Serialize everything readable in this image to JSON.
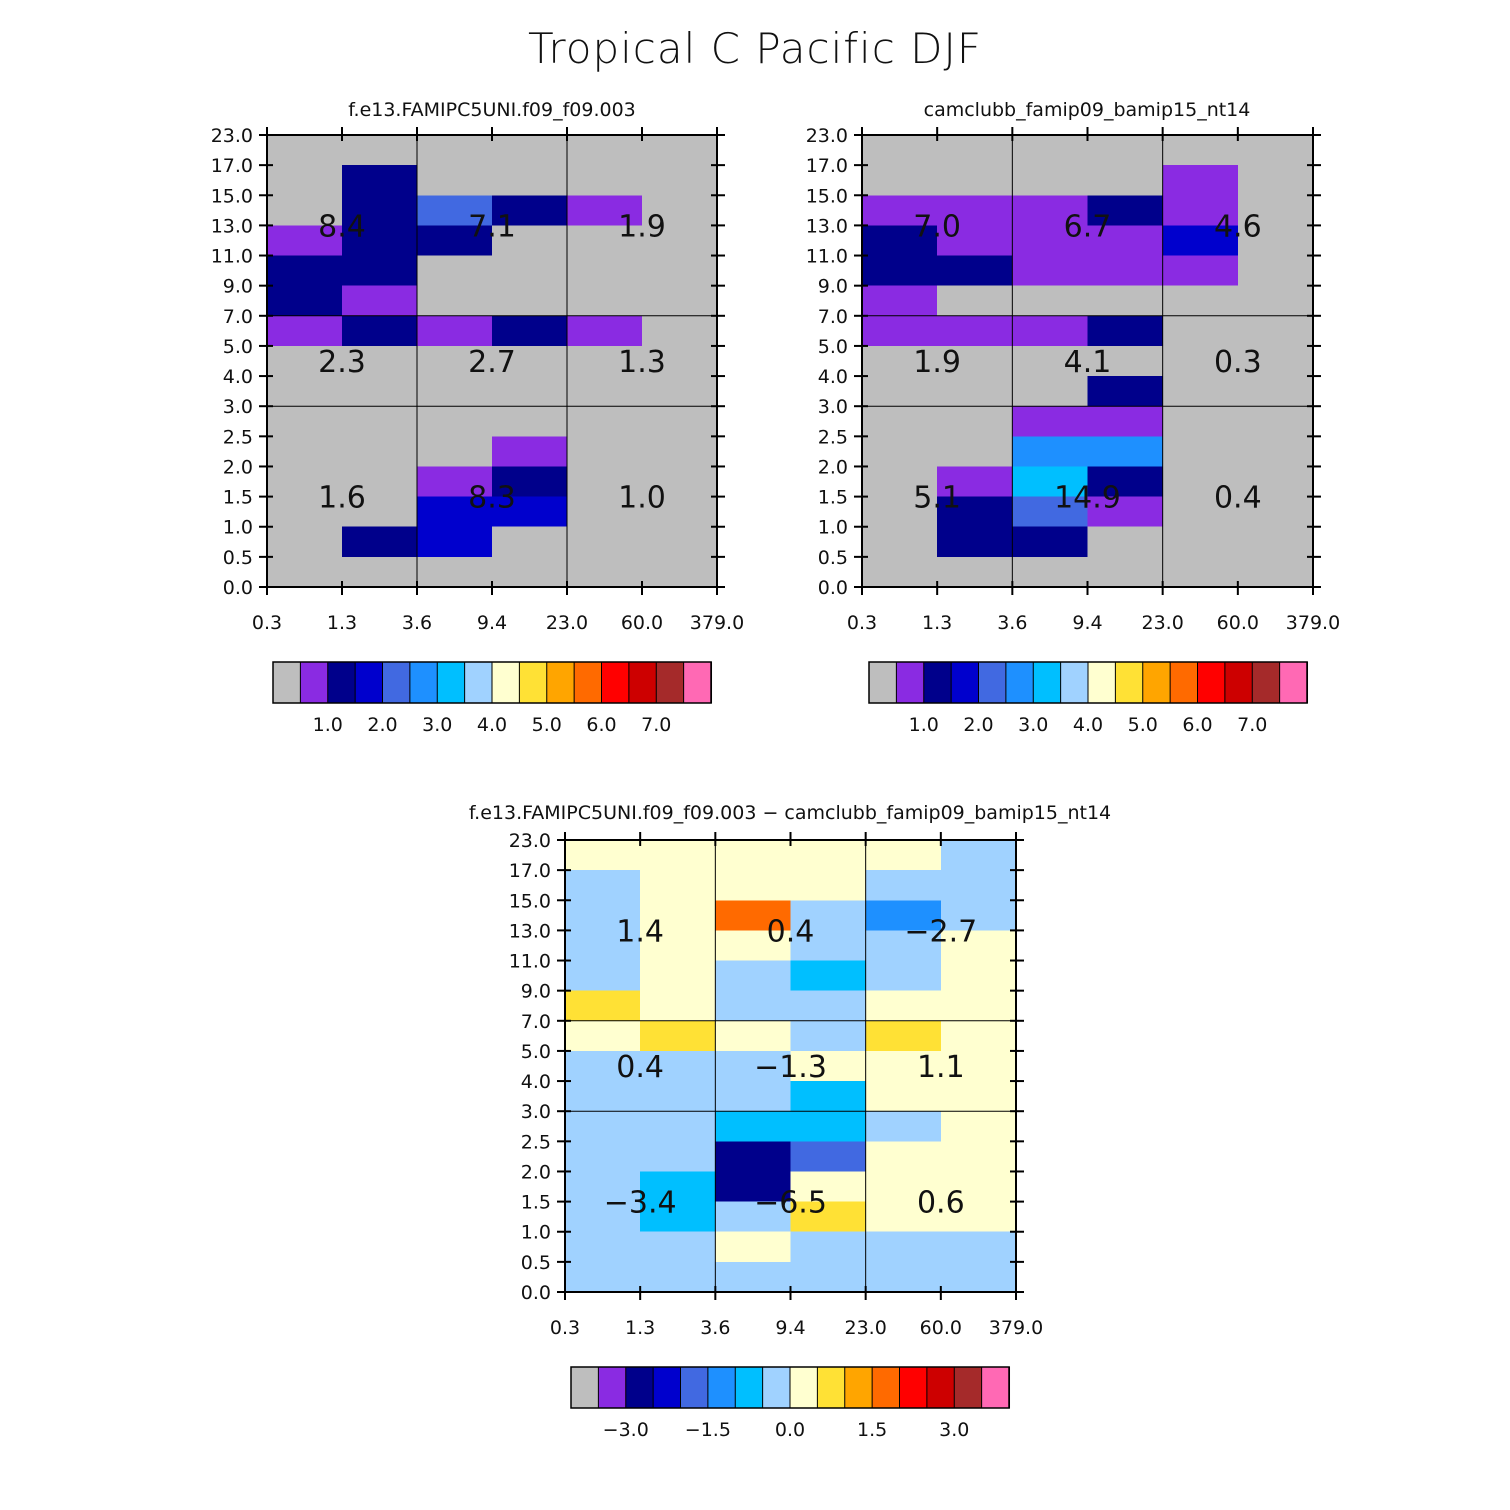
{
  "title": "Tropical C Pacific DJF",
  "cloud_color_key": [
    "#bebebe",
    "#8a2be2",
    "#00008b",
    "#0000cd",
    "#4169e1",
    "#1e90ff",
    "#00bfff",
    "#a0d2ff",
    "#ffffd0",
    "#ffe135",
    "#ffa500",
    "#ff6a00",
    "#ff0000",
    "#cd0000",
    "#a52a2a",
    "#ff69b4"
  ],
  "chart_data": [
    {
      "type": "heatmap",
      "title": "f.e13.FAMIPC5UNI.f09_f09.003",
      "x_ticks": [
        "0.3",
        "1.3",
        "3.6",
        "9.4",
        "23.0",
        "60.0",
        "379.0"
      ],
      "y_ticks": [
        "0.0",
        "0.5",
        "1.0",
        "1.5",
        "2.0",
        "2.5",
        "3.0",
        "4.0",
        "5.0",
        "7.0",
        "9.0",
        "11.0",
        "13.0",
        "15.0",
        "17.0",
        "23.0"
      ],
      "grid_rows_top_to_bottom": [
        [
          0,
          0,
          0,
          0,
          0,
          0
        ],
        [
          0,
          2,
          0,
          0,
          0,
          0
        ],
        [
          0,
          2,
          4,
          2,
          1,
          0
        ],
        [
          1,
          2,
          2,
          0,
          0,
          0
        ],
        [
          2,
          2,
          0,
          0,
          0,
          0
        ],
        [
          2,
          1,
          0,
          0,
          0,
          0
        ],
        [
          1,
          2,
          1,
          2,
          1,
          0
        ],
        [
          0,
          0,
          0,
          0,
          0,
          0
        ],
        [
          0,
          0,
          0,
          0,
          0,
          0
        ],
        [
          0,
          0,
          0,
          0,
          0,
          0
        ],
        [
          0,
          0,
          0,
          1,
          0,
          0
        ],
        [
          0,
          0,
          1,
          2,
          0,
          0
        ],
        [
          0,
          0,
          3,
          3,
          0,
          0
        ],
        [
          0,
          2,
          3,
          0,
          0,
          0
        ],
        [
          0,
          0,
          0,
          0,
          0,
          0
        ]
      ],
      "box_labels": [
        {
          "value": "8.4",
          "col": 0,
          "row": 0
        },
        {
          "value": "7.1",
          "col": 1,
          "row": 0
        },
        {
          "value": "1.9",
          "col": 2,
          "row": 0
        },
        {
          "value": "2.3",
          "col": 0,
          "row": 1
        },
        {
          "value": "2.7",
          "col": 1,
          "row": 1
        },
        {
          "value": "1.3",
          "col": 2,
          "row": 1
        },
        {
          "value": "1.6",
          "col": 0,
          "row": 2
        },
        {
          "value": "8.3",
          "col": 1,
          "row": 2
        },
        {
          "value": "1.0",
          "col": 2,
          "row": 2
        }
      ],
      "colorbar_labels": [
        "1.0",
        "2.0",
        "3.0",
        "4.0",
        "5.0",
        "6.0",
        "7.0"
      ]
    },
    {
      "type": "heatmap",
      "title": "camclubb_famip09_bamip15_nt14",
      "x_ticks": [
        "0.3",
        "1.3",
        "3.6",
        "9.4",
        "23.0",
        "60.0",
        "379.0"
      ],
      "y_ticks": [
        "0.0",
        "0.5",
        "1.0",
        "1.5",
        "2.0",
        "2.5",
        "3.0",
        "4.0",
        "5.0",
        "7.0",
        "9.0",
        "11.0",
        "13.0",
        "15.0",
        "17.0",
        "23.0"
      ],
      "grid_rows_top_to_bottom": [
        [
          0,
          0,
          0,
          0,
          0,
          0
        ],
        [
          0,
          0,
          0,
          0,
          1,
          0
        ],
        [
          1,
          1,
          1,
          2,
          1,
          0
        ],
        [
          2,
          1,
          1,
          1,
          3,
          0
        ],
        [
          2,
          2,
          1,
          1,
          1,
          0
        ],
        [
          1,
          0,
          0,
          0,
          0,
          0
        ],
        [
          1,
          1,
          1,
          2,
          0,
          0
        ],
        [
          0,
          0,
          0,
          0,
          0,
          0
        ],
        [
          0,
          0,
          0,
          2,
          0,
          0
        ],
        [
          0,
          0,
          1,
          1,
          0,
          0
        ],
        [
          0,
          0,
          5,
          5,
          0,
          0
        ],
        [
          0,
          1,
          6,
          2,
          0,
          0
        ],
        [
          0,
          2,
          4,
          1,
          0,
          0
        ],
        [
          0,
          2,
          2,
          0,
          0,
          0
        ],
        [
          0,
          0,
          0,
          0,
          0,
          0
        ]
      ],
      "box_labels": [
        {
          "value": "7.0",
          "col": 0,
          "row": 0
        },
        {
          "value": "6.7",
          "col": 1,
          "row": 0
        },
        {
          "value": "4.6",
          "col": 2,
          "row": 0
        },
        {
          "value": "1.9",
          "col": 0,
          "row": 1
        },
        {
          "value": "4.1",
          "col": 1,
          "row": 1
        },
        {
          "value": "0.3",
          "col": 2,
          "row": 1
        },
        {
          "value": "5.1",
          "col": 0,
          "row": 2
        },
        {
          "value": "14.9",
          "col": 1,
          "row": 2
        },
        {
          "value": "0.4",
          "col": 2,
          "row": 2
        }
      ],
      "colorbar_labels": [
        "1.0",
        "2.0",
        "3.0",
        "4.0",
        "5.0",
        "6.0",
        "7.0"
      ]
    },
    {
      "type": "heatmap",
      "title": "f.e13.FAMIPC5UNI.f09_f09.003 − camclubb_famip09_bamip15_nt14",
      "x_ticks": [
        "0.3",
        "1.3",
        "3.6",
        "9.4",
        "23.0",
        "60.0",
        "379.0"
      ],
      "y_ticks": [
        "0.0",
        "0.5",
        "1.0",
        "1.5",
        "2.0",
        "2.5",
        "3.0",
        "4.0",
        "5.0",
        "7.0",
        "9.0",
        "11.0",
        "13.0",
        "15.0",
        "17.0",
        "23.0"
      ],
      "grid_rows_top_to_bottom": [
        [
          8,
          8,
          8,
          8,
          8,
          7
        ],
        [
          7,
          8,
          8,
          8,
          7,
          7
        ],
        [
          7,
          8,
          11,
          7,
          5,
          7
        ],
        [
          7,
          8,
          8,
          7,
          7,
          8
        ],
        [
          7,
          8,
          7,
          6,
          7,
          8
        ],
        [
          9,
          8,
          7,
          7,
          8,
          8
        ],
        [
          8,
          9,
          8,
          7,
          9,
          8
        ],
        [
          7,
          7,
          7,
          8,
          8,
          8
        ],
        [
          7,
          7,
          7,
          6,
          8,
          8
        ],
        [
          7,
          7,
          6,
          6,
          7,
          8
        ],
        [
          7,
          7,
          2,
          4,
          8,
          8
        ],
        [
          7,
          6,
          2,
          8,
          8,
          8
        ],
        [
          7,
          6,
          7,
          9,
          8,
          8
        ],
        [
          7,
          7,
          8,
          7,
          7,
          7
        ],
        [
          7,
          7,
          7,
          7,
          7,
          7
        ]
      ],
      "box_labels": [
        {
          "value": "1.4",
          "col": 0,
          "row": 0
        },
        {
          "value": "0.4",
          "col": 1,
          "row": 0
        },
        {
          "value": "−2.7",
          "col": 2,
          "row": 0
        },
        {
          "value": "0.4",
          "col": 0,
          "row": 1
        },
        {
          "value": "−1.3",
          "col": 1,
          "row": 1
        },
        {
          "value": "1.1",
          "col": 2,
          "row": 1
        },
        {
          "value": "−3.4",
          "col": 0,
          "row": 2
        },
        {
          "value": "−6.5",
          "col": 1,
          "row": 2
        },
        {
          "value": "0.6",
          "col": 2,
          "row": 2
        }
      ],
      "colorbar_labels": [
        "−3.0",
        "−1.5",
        "0.0",
        "1.5",
        "3.0"
      ]
    }
  ]
}
